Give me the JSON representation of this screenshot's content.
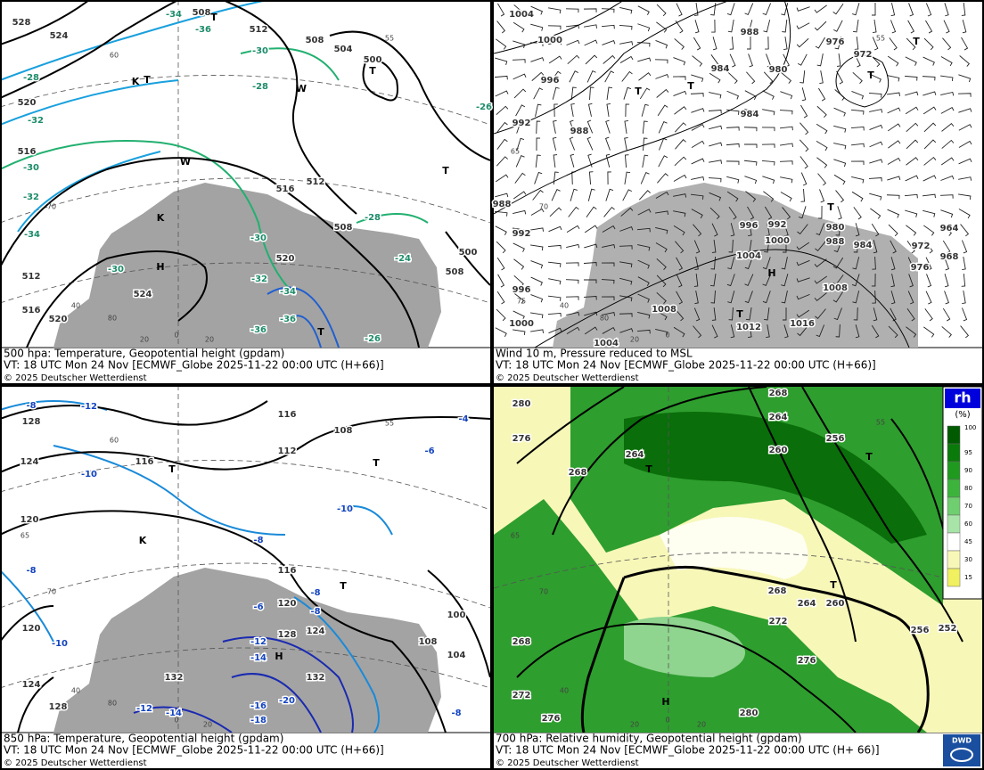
{
  "panels": [
    {
      "title": "500 hpa: Temperature, Geopotential height (gpdam)",
      "valid_time": "VT: 18 UTC Mon  24 Nov [ECMWF_Globe 2025-11-22 00:00 UTC  (H+66)]",
      "copyright": "© 2025 Deutscher Wetterdienst",
      "height_labels": [
        "528",
        "524",
        "520",
        "516",
        "512",
        "516",
        "520",
        "524",
        "516",
        "512",
        "508",
        "504",
        "500",
        "508",
        "512",
        "500",
        "508",
        "520",
        "508"
      ],
      "temp_labels": [
        "-34",
        "-36",
        "-30",
        "-28",
        "-28",
        "-32",
        "-30",
        "-32",
        "-34",
        "-30",
        "-30",
        "-32",
        "-34",
        "-36",
        "-36",
        "-28",
        "-24",
        "-26",
        "-26"
      ],
      "symbols": [
        "H",
        "T",
        "T",
        "T",
        "T",
        "T",
        "K",
        "K",
        "W",
        "W"
      ],
      "grid_labels": [
        "55",
        "60",
        "70",
        "40",
        "80",
        "20",
        "0",
        "20"
      ]
    },
    {
      "title": "Wind 10 m, Pressure reduced to MSL",
      "valid_time": "VT: 18 UTC Mon  24 Nov [ECMWF_Globe 2025-11-22 00:00 UTC  (H+66)]",
      "copyright": "© 2025 Deutscher Wetterdienst",
      "height_labels": [
        "1004",
        "1000",
        "996",
        "992",
        "988",
        "988",
        "992",
        "996",
        "1000",
        "1004",
        "1008",
        "1012",
        "1016",
        "1008",
        "1004",
        "1000",
        "996",
        "992",
        "988",
        "984",
        "980",
        "976",
        "972",
        "968",
        "964",
        "988",
        "984",
        "980",
        "984",
        "976",
        "972"
      ],
      "temp_labels": [],
      "symbols": [
        "T",
        "T",
        "T",
        "T",
        "T",
        "H",
        "T"
      ],
      "grid_labels": [
        "55",
        "65",
        "70",
        "75",
        "40",
        "80",
        "20",
        "0"
      ]
    },
    {
      "title": "850 hPa:  Temperature, Geopotential height (gpdam)",
      "valid_time": "VT: 18 UTC Mon  24 Nov [ECMWF_Globe 2025-11-22 00:00 UTC  (H+66)]",
      "copyright": "© 2025 Deutscher Wetterdienst",
      "height_labels": [
        "128",
        "124",
        "120",
        "116",
        "116",
        "112",
        "108",
        "116",
        "120",
        "124",
        "128",
        "132",
        "132",
        "128",
        "124",
        "120",
        "108",
        "104",
        "100"
      ],
      "temp_labels": [
        "-8",
        "-12",
        "-10",
        "-6",
        "-4",
        "-10",
        "-8",
        "-8",
        "-10",
        "-8",
        "-8",
        "-6",
        "-12",
        "-14",
        "-16",
        "-18",
        "-20",
        "-12",
        "-14",
        "-8"
      ],
      "symbols": [
        "T",
        "T",
        "T",
        "H",
        "K"
      ],
      "grid_labels": [
        "55",
        "60",
        "65",
        "70",
        "80",
        "40",
        "20",
        "0"
      ]
    },
    {
      "title": "700 hPa:  Relative humidity, Geopotential height (gpdam)",
      "valid_time": "VT: 18 UTC Mon  24 Nov [ECMWF_Globe  2025-11-22 00:00 UTC  (H+ 66)]",
      "copyright": "© 2025 Deutscher Wetterdienst",
      "height_labels": [
        "280",
        "276",
        "268",
        "264",
        "260",
        "256",
        "264",
        "268",
        "268",
        "272",
        "276",
        "268",
        "264",
        "260",
        "272",
        "276",
        "280",
        "256",
        "252"
      ],
      "temp_labels": [],
      "symbols": [
        "T",
        "T",
        "T",
        "H"
      ],
      "grid_labels": [
        "55",
        "65",
        "70",
        "40",
        "20",
        "0",
        "20"
      ]
    }
  ],
  "legend": {
    "title": "rh",
    "unit": "(%)",
    "ticks": [
      "100",
      "95",
      "90",
      "80",
      "70",
      "60",
      "45",
      "30",
      "15"
    ]
  },
  "logo": "DWD"
}
